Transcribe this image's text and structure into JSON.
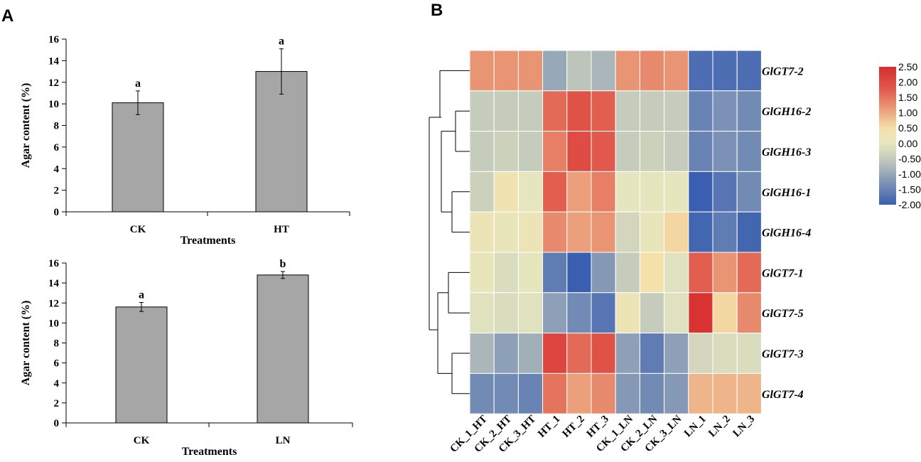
{
  "panel_labels": [
    "A",
    "B"
  ],
  "chart_data": [
    {
      "type": "bar",
      "panel": "A-top",
      "title": "",
      "xlabel": "Treatments",
      "ylabel": "Agar content (%)",
      "categories": [
        "CK",
        "HT"
      ],
      "values": [
        10.1,
        13.0
      ],
      "errors": [
        1.1,
        2.1
      ],
      "significance": [
        "a",
        "a"
      ],
      "ylim": [
        0,
        16
      ],
      "yticks": [
        0,
        2,
        4,
        6,
        8,
        10,
        12,
        14,
        16
      ],
      "bar_color": "#a6a6a6"
    },
    {
      "type": "bar",
      "panel": "A-bottom",
      "title": "",
      "xlabel": "Treatments",
      "ylabel": "Agar content (%)",
      "categories": [
        "CK",
        "LN"
      ],
      "values": [
        11.6,
        14.8
      ],
      "errors": [
        0.45,
        0.35
      ],
      "significance": [
        "a",
        "b"
      ],
      "ylim": [
        0,
        16
      ],
      "yticks": [
        0,
        2,
        4,
        6,
        8,
        10,
        12,
        14,
        16
      ],
      "bar_color": "#a6a6a6"
    },
    {
      "type": "heatmap",
      "panel": "B",
      "rows": [
        "GlGT7-2",
        "GlGH16-2",
        "GlGH16-3",
        "GlGH16-1",
        "GlGH16-4",
        "GlGT7-1",
        "GlGT7-5",
        "GlGT7-3",
        "GlGT7-4"
      ],
      "columns": [
        "CK_1_HT",
        "CK_2_HT",
        "CK_3_HT",
        "HT_1",
        "HT_2",
        "HT_3",
        "CK_1_LN",
        "CK_2_LN",
        "CK_3_LN",
        "LN_1",
        "LN_2",
        "LN_3"
      ],
      "values": [
        [
          1.2,
          1.2,
          1.2,
          -1.0,
          -0.6,
          -0.8,
          1.2,
          1.3,
          1.2,
          -1.8,
          -1.8,
          -1.8
        ],
        [
          -0.5,
          -0.5,
          -0.5,
          1.6,
          1.9,
          1.7,
          -0.5,
          -0.5,
          -0.5,
          -1.5,
          -1.3,
          -1.4
        ],
        [
          -0.5,
          -0.4,
          -0.5,
          1.4,
          2.0,
          1.8,
          -0.5,
          -0.4,
          -0.5,
          -1.5,
          -1.3,
          -1.4
        ],
        [
          -0.4,
          0.3,
          0.0,
          1.7,
          1.1,
          1.4,
          0.0,
          0.0,
          0.0,
          -2.0,
          -1.7,
          -1.4
        ],
        [
          0.2,
          0.1,
          0.2,
          1.3,
          1.1,
          1.2,
          -0.3,
          0.1,
          0.6,
          -1.9,
          -1.6,
          -1.9
        ],
        [
          0.1,
          -0.2,
          0.0,
          -1.6,
          -2.0,
          -1.2,
          -0.5,
          0.5,
          -0.1,
          1.7,
          1.2,
          1.6
        ],
        [
          -0.1,
          -0.2,
          -0.1,
          -1.1,
          -1.4,
          -1.7,
          0.2,
          -0.5,
          -0.1,
          2.4,
          0.6,
          1.3
        ],
        [
          -0.8,
          -1.1,
          -0.9,
          2.1,
          1.6,
          1.9,
          -1.1,
          -1.6,
          -1.1,
          -0.3,
          -0.2,
          -0.2
        ],
        [
          -1.4,
          -1.4,
          -1.5,
          1.5,
          1.1,
          1.3,
          -1.2,
          -1.4,
          -1.2,
          0.9,
          0.9,
          0.9
        ]
      ],
      "vmin": -2.0,
      "vmax": 2.5,
      "colorbar_labels": [
        "2.50",
        "2.00",
        "1.50",
        "1.00",
        "0.50",
        "0.00",
        "-0.50",
        "-1.00",
        "-1.50",
        "-2.00"
      ],
      "colormap": [
        "#3a5fb0",
        "#dfdfb6",
        "#f5e3a7",
        "#d62d2d"
      ],
      "dendrogram": "hierarchical row clustering"
    }
  ]
}
